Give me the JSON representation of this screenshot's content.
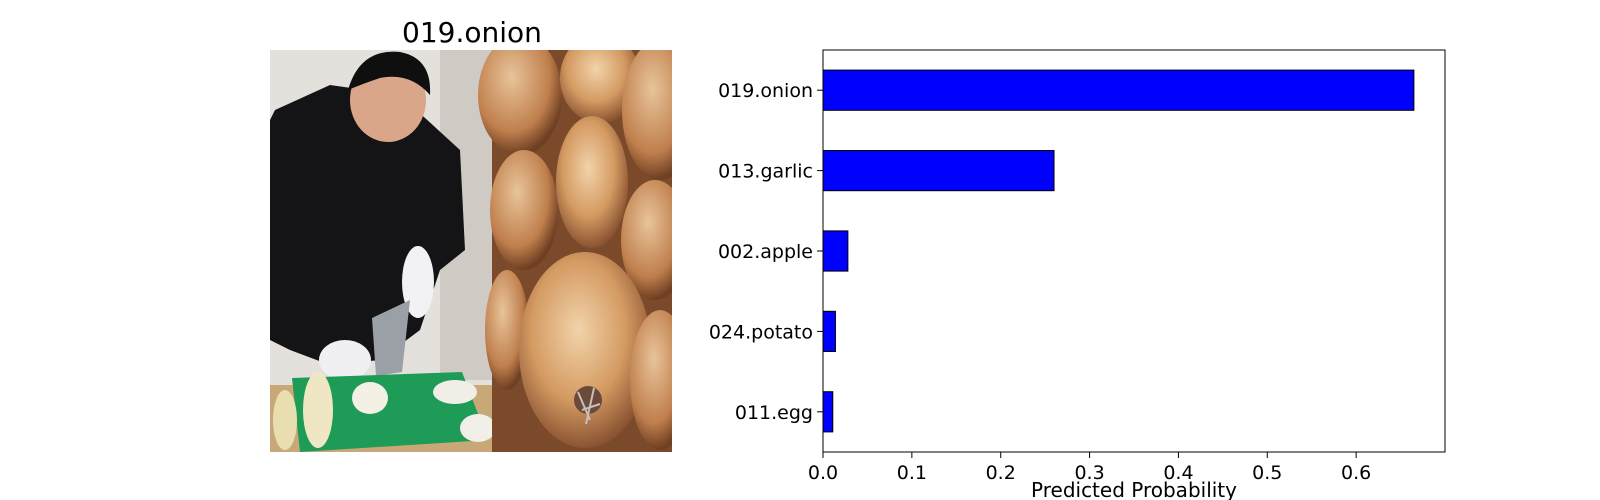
{
  "image_panel": {
    "title": "019.onion"
  },
  "chart_data": {
    "type": "bar",
    "orientation": "horizontal",
    "categories": [
      "019.onion",
      "013.garlic",
      "002.apple",
      "024.potato",
      "011.egg"
    ],
    "values": [
      0.665,
      0.26,
      0.028,
      0.014,
      0.011
    ],
    "xlabel": "Predicted Probability",
    "ylabel": "",
    "xlim": [
      0,
      0.7
    ],
    "xticks": [
      0.0,
      0.1,
      0.2,
      0.3,
      0.4,
      0.5,
      0.6
    ],
    "xtick_labels": [
      "0.0",
      "0.1",
      "0.2",
      "0.3",
      "0.4",
      "0.5",
      "0.6"
    ],
    "grid": false,
    "bar_color": "#0000ff",
    "edge_color": "#000000"
  }
}
